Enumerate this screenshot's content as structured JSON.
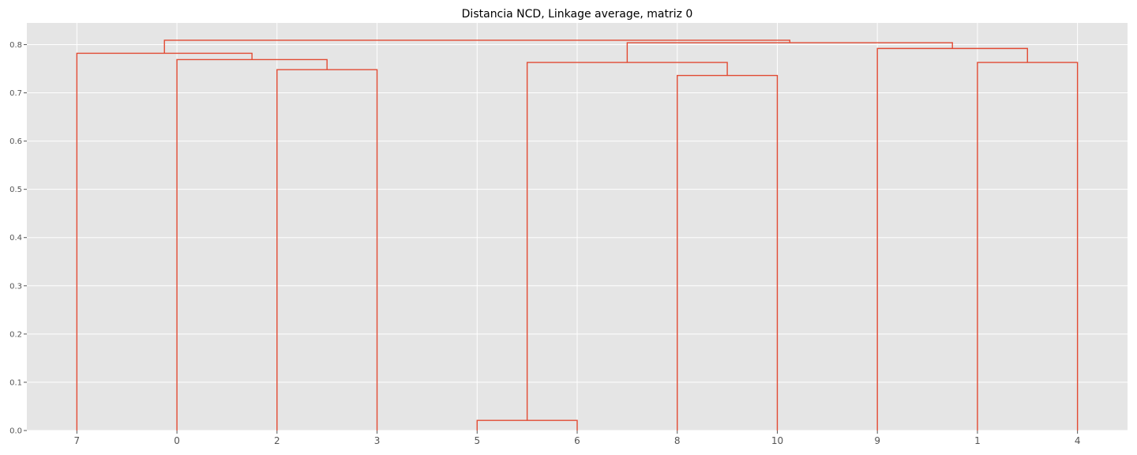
{
  "chart_data": {
    "type": "dendrogram",
    "title": "Distancia NCD, Linkage average, matriz 0",
    "xlabel": "",
    "ylabel": "",
    "leaves": [
      "7",
      "0",
      "2",
      "3",
      "5",
      "6",
      "8",
      "10",
      "9",
      "1",
      "4"
    ],
    "ylim": [
      0,
      0.845
    ],
    "yticks": [
      0.0,
      0.1,
      0.2,
      0.3,
      0.4,
      0.5,
      0.6,
      0.7,
      0.8
    ],
    "ytick_labels": [
      "0.0",
      "0.1",
      "0.2",
      "0.3",
      "0.4",
      "0.5",
      "0.6",
      "0.7",
      "0.8"
    ],
    "grid": true,
    "line_color": "#E24A33",
    "background_color": "#E5E5E5",
    "merges": [
      {
        "left": "5",
        "right": "6",
        "height": 0.021
      },
      {
        "left": "8",
        "right": "10",
        "height": 0.736
      },
      {
        "left": "2",
        "right": "3",
        "height": 0.748
      },
      {
        "left": "1",
        "right": "4",
        "height": 0.763
      },
      {
        "left": "5,6",
        "right": "8,10",
        "height": 0.763
      },
      {
        "left": "0",
        "right": "2,3",
        "height": 0.769
      },
      {
        "left": "7",
        "right": "0,2,3",
        "height": 0.782
      },
      {
        "left": "9",
        "right": "1,4",
        "height": 0.792
      },
      {
        "left": "5,6,8,10",
        "right": "9,1,4",
        "height": 0.804
      },
      {
        "left": "7,0,2,3",
        "right": "5,6,8,10,9,1,4",
        "height": 0.809
      }
    ]
  }
}
